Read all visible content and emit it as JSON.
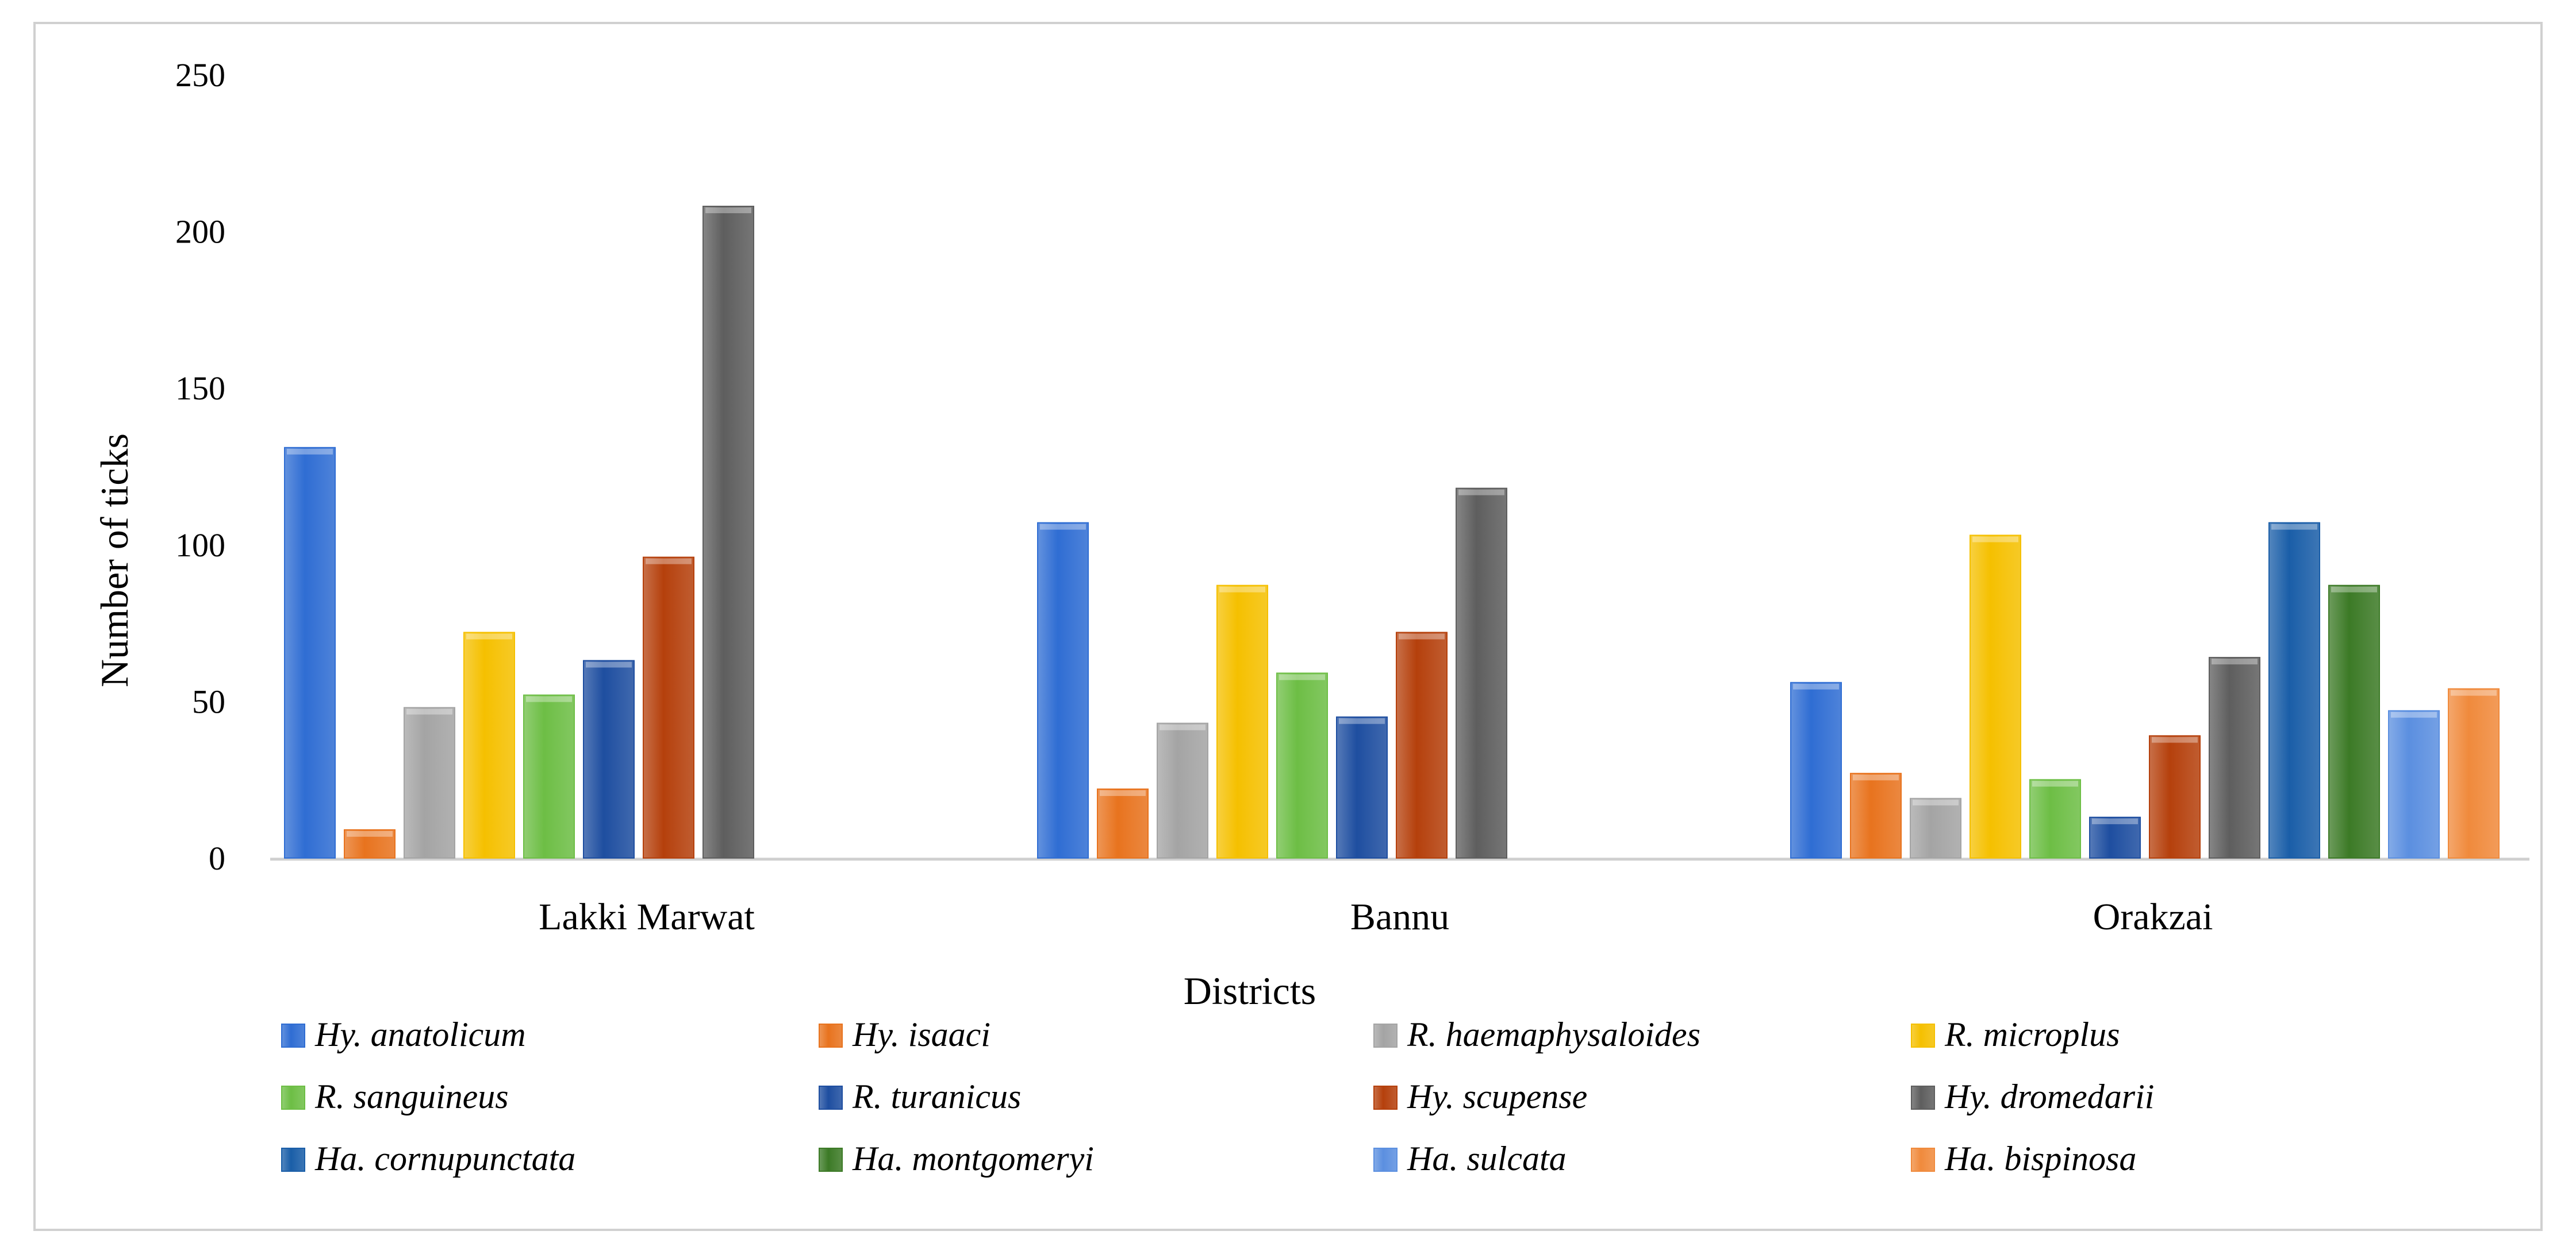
{
  "chart_data": {
    "type": "bar",
    "title": "",
    "xlabel": "Districts",
    "ylabel": "Number of ticks",
    "ylim": [
      0,
      250
    ],
    "yticks": [
      "0",
      "50",
      "100",
      "150",
      "200",
      "250"
    ],
    "categories": [
      "Lakki Marwat",
      "Bannu",
      "Orakzai"
    ],
    "series": [
      {
        "name": "Hy. anatolicum",
        "color": "#2F6DD3",
        "values": [
          131,
          107,
          56
        ]
      },
      {
        "name": "Hy. isaaci",
        "color": "#E8731E",
        "values": [
          9,
          22,
          27
        ]
      },
      {
        "name": "R. haemaphysaloides",
        "color": "#A4A4A4",
        "values": [
          48,
          43,
          19
        ]
      },
      {
        "name": "R. microplus",
        "color": "#F5C000",
        "values": [
          72,
          87,
          103
        ]
      },
      {
        "name": "R. sanguineus",
        "color": "#6DBE45",
        "values": [
          52,
          59,
          25
        ]
      },
      {
        "name": "R. turanicus",
        "color": "#1E4EA0",
        "values": [
          63,
          45,
          13
        ]
      },
      {
        "name": "Hy. scupense",
        "color": "#B5400C",
        "values": [
          96,
          72,
          39
        ]
      },
      {
        "name": "Hy. dromedarii",
        "color": "#5E5E5E",
        "values": [
          208,
          118,
          64
        ]
      },
      {
        "name": "Ha. cornupunctata",
        "color": "#1A5EA8",
        "values": [
          null,
          null,
          107
        ]
      },
      {
        "name": "Ha. montgomeryi",
        "color": "#3C7A26",
        "values": [
          null,
          null,
          87
        ]
      },
      {
        "name": "Ha. sulcata",
        "color": "#5B8FE0",
        "values": [
          null,
          null,
          47
        ]
      },
      {
        "name": "Ha. bispinosa",
        "color": "#F08A3C",
        "values": [
          null,
          null,
          54
        ]
      }
    ],
    "legend": "bottom",
    "grid": false
  }
}
